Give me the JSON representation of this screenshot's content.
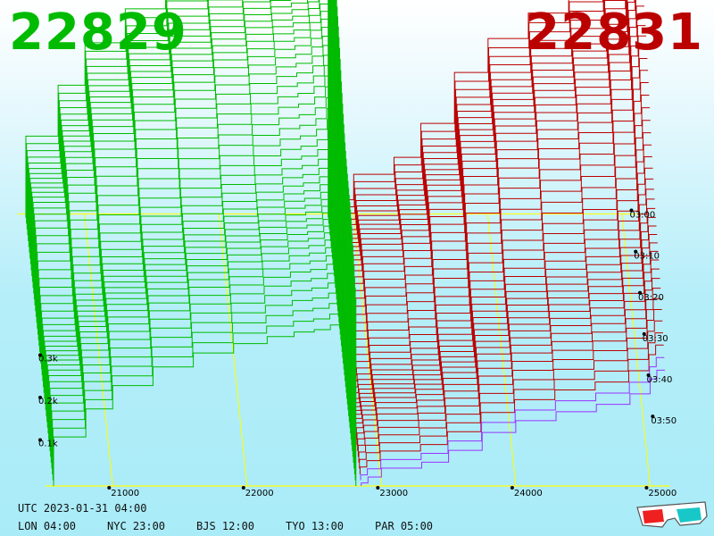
{
  "header": {
    "bid_price": "22829",
    "ask_price": "22831"
  },
  "colors": {
    "bid": "#00bb00",
    "ask": "#bb0000",
    "grid": "#ffff00"
  },
  "chart_data": {
    "type": "area",
    "x_ticks": [
      "21000",
      "22000",
      "23000",
      "24000",
      "25000"
    ],
    "x_range": [
      20500,
      25150
    ],
    "y_ticks": [
      "0.1k",
      "0.2k",
      "0.3k"
    ],
    "y_range": [
      0,
      0.8
    ],
    "time_ticks": [
      "03:00",
      "03:10",
      "03:20",
      "03:30",
      "03:40",
      "03:50"
    ],
    "mid_price": 22830,
    "bid_edges": [
      [
        20720,
        0.21
      ],
      [
        20800,
        0.33
      ],
      [
        21000,
        0.43
      ],
      [
        21300,
        0.51
      ],
      [
        21600,
        0.57
      ],
      [
        21900,
        0.61
      ],
      [
        22150,
        0.64
      ],
      [
        22350,
        0.66
      ],
      [
        22500,
        0.67
      ],
      [
        22620,
        0.69
      ],
      [
        22700,
        0.72
      ],
      [
        22770,
        0.76
      ],
      [
        22800,
        0.8
      ]
    ],
    "ask_edges": [
      [
        22860,
        0.02
      ],
      [
        22900,
        0.06
      ],
      [
        23000,
        0.12
      ],
      [
        23300,
        0.16
      ],
      [
        23500,
        0.24
      ],
      [
        23750,
        0.36
      ],
      [
        24000,
        0.44
      ],
      [
        24300,
        0.5
      ],
      [
        24600,
        0.55
      ],
      [
        24850,
        0.62
      ],
      [
        25000,
        0.72
      ],
      [
        25050,
        0.78
      ]
    ]
  },
  "footer": {
    "utc": "UTC 2023-01-31 04:00",
    "zones": [
      "LON 04:00",
      "NYC 23:00",
      "BJS 12:00",
      "TYO 13:00",
      "PAR 05:00"
    ]
  }
}
